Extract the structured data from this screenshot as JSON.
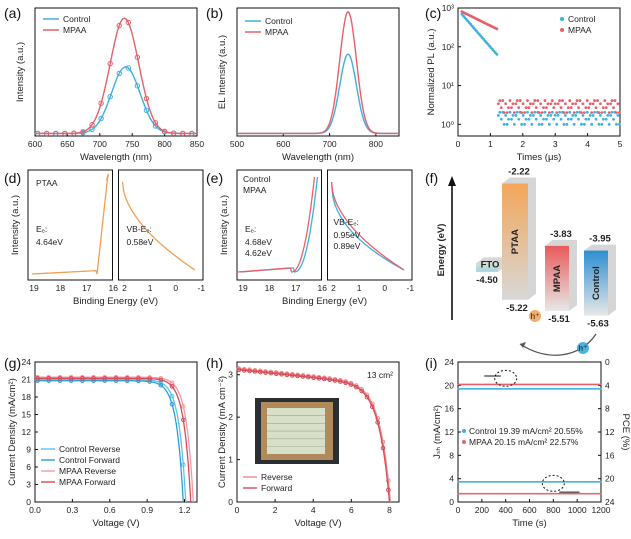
{
  "panels": {
    "a": {
      "letter": "(a)",
      "xlabel": "Wavelength (nm)",
      "ylabel": "Intensity (a.u.)"
    },
    "b": {
      "letter": "(b)",
      "xlabel": "Wavelength (nm)",
      "ylabel": "EL Intensity (a.u.)"
    },
    "c": {
      "letter": "(c)",
      "xlabel": "Times (μs)",
      "ylabel": "Normalized PL (a.u.)"
    },
    "d": {
      "letter": "(d)",
      "xlabel": "Binding Energy (eV)",
      "ylabel": "Intensity (a.u.)",
      "sample": "PTAA",
      "ef_label": "Eₑ:",
      "ef_value": "4.64eV",
      "vb_label": "VB-Eₑ:",
      "vb_value": "0.58eV"
    },
    "e": {
      "letter": "(e)",
      "xlabel": "Binding Energy (eV)",
      "ylabel": "Intensity (a.u.)",
      "legend": [
        "Control",
        "MPAA"
      ],
      "ef_label": "Eₑ:",
      "ef_values": [
        "4.68eV",
        "4.62eV"
      ],
      "vb_label": "VB-Eₑ:",
      "vb_values": [
        "0.95eV",
        "0.89eV"
      ]
    },
    "f": {
      "letter": "(f)",
      "ylabel": "Energy (eV)",
      "layers": [
        {
          "name": "FTO",
          "top": "",
          "bottom": "-4.50"
        },
        {
          "name": "PTAA",
          "top": "-2.22",
          "bottom": "-5.22"
        },
        {
          "name": "MPAA",
          "top": "-3.83",
          "bottom": "-5.51"
        },
        {
          "name": "Control",
          "top": "-3.95",
          "bottom": "-5.63"
        }
      ],
      "hole_label": "h⁺"
    },
    "g": {
      "letter": "(g)",
      "xlabel": "Voltage (V)",
      "ylabel": "Current Density (mA/cm²)"
    },
    "h": {
      "letter": "(h)",
      "xlabel": "Voltage (V)",
      "ylabel": "Current Density (mA cm⁻²)",
      "area": "13 cm²"
    },
    "i": {
      "letter": "(i)",
      "xlabel": "Time (s)",
      "ylabel": "Jₛₕ (mA/cm²)",
      "ylabel_right": "PCE (%)",
      "legend_lines": [
        "Control 19.39 mA/cm²  20.55%",
        "MPAA   20.15 mA/cm²  22.57%"
      ]
    }
  },
  "colors": {
    "control": "#3fb0e0",
    "mpaa": "#e8606a",
    "orange": "#f0a050",
    "blue": "#2aa8d8"
  },
  "chart_data": [
    {
      "id": "a",
      "type": "line",
      "xlim": [
        600,
        850
      ],
      "xticks": [
        600,
        650,
        700,
        750,
        800,
        850
      ],
      "series": [
        {
          "name": "Control",
          "peak_x": 740,
          "peak_y": 0.52
        },
        {
          "name": "MPAA",
          "peak_x": 738,
          "peak_y": 0.9
        }
      ],
      "legend": [
        "Control",
        "MPAA"
      ]
    },
    {
      "id": "b",
      "type": "line",
      "xlim": [
        500,
        850
      ],
      "xticks": [
        500,
        600,
        700,
        800
      ],
      "series": [
        {
          "name": "Control",
          "peak_x": 740,
          "peak_y": 0.62
        },
        {
          "name": "MPAA",
          "peak_x": 740,
          "peak_y": 0.95
        }
      ],
      "legend": [
        "Control",
        "MPAA"
      ]
    },
    {
      "id": "c",
      "type": "scatter",
      "xlim": [
        0,
        5
      ],
      "ylim_log": [
        0.5,
        1000
      ],
      "xticks": [
        0,
        1,
        2,
        3,
        4,
        5
      ],
      "yticks": [
        "10⁰",
        "10¹",
        "10²",
        "10³"
      ],
      "series": [
        {
          "name": "Control",
          "tail": 0.8
        },
        {
          "name": "MPAA",
          "tail": 2.5
        }
      ],
      "legend": [
        "Control",
        "MPAA"
      ]
    },
    {
      "id": "d",
      "type": "line",
      "xticks": [
        19,
        18,
        17,
        16
      ],
      "xticks2": [
        2,
        1,
        0,
        -1
      ]
    },
    {
      "id": "e",
      "type": "line",
      "xticks": [
        19,
        18,
        17,
        16
      ],
      "xticks2": [
        2,
        1,
        0,
        -1
      ]
    },
    {
      "id": "g",
      "type": "line",
      "xlim": [
        0,
        1.3
      ],
      "ylim": [
        0,
        24
      ],
      "xticks": [
        "0.0",
        "0.3",
        "0.6",
        "0.9",
        "1.2"
      ],
      "yticks": [
        0,
        3,
        6,
        9,
        12,
        15,
        18,
        21,
        24
      ],
      "series": [
        {
          "name": "Control Reverse",
          "jsc": 21.0,
          "voc": 1.21
        },
        {
          "name": "Control Forward",
          "jsc": 20.8,
          "voc": 1.19
        },
        {
          "name": "MPAA Reverse",
          "jsc": 21.4,
          "voc": 1.27
        },
        {
          "name": "MPAA Forward",
          "jsc": 21.2,
          "voc": 1.25
        }
      ],
      "legend": [
        "Control Reverse",
        "Control Forward",
        "MPAA Reverse",
        "MPAA Forward"
      ]
    },
    {
      "id": "h",
      "type": "line",
      "xlim": [
        0,
        8.5
      ],
      "ylim": [
        0,
        3.3
      ],
      "xticks": [
        0,
        2,
        4,
        6,
        8
      ],
      "yticks": [
        0,
        1,
        2,
        3
      ],
      "series": [
        {
          "name": "Reverse",
          "jsc": 3.15,
          "voc": 8.05
        },
        {
          "name": "Forward",
          "jsc": 3.12,
          "voc": 8.0
        }
      ],
      "legend": [
        "Reverse",
        "Forward"
      ]
    },
    {
      "id": "i",
      "type": "scatter",
      "xlim": [
        0,
        1200
      ],
      "ylim": [
        0,
        24
      ],
      "xticks": [
        0,
        200,
        400,
        600,
        800,
        1000,
        1200
      ],
      "yticks": [
        0,
        4,
        8,
        12,
        16,
        20,
        24
      ],
      "yticks_right": [
        0,
        4,
        8,
        12,
        16,
        20,
        24
      ],
      "series": [
        {
          "name": "Control Jsc",
          "value": 19.39
        },
        {
          "name": "MPAA Jsc",
          "value": 20.15
        },
        {
          "name": "Control PCE",
          "value": 20.55
        },
        {
          "name": "MPAA PCE",
          "value": 22.57
        }
      ]
    }
  ]
}
